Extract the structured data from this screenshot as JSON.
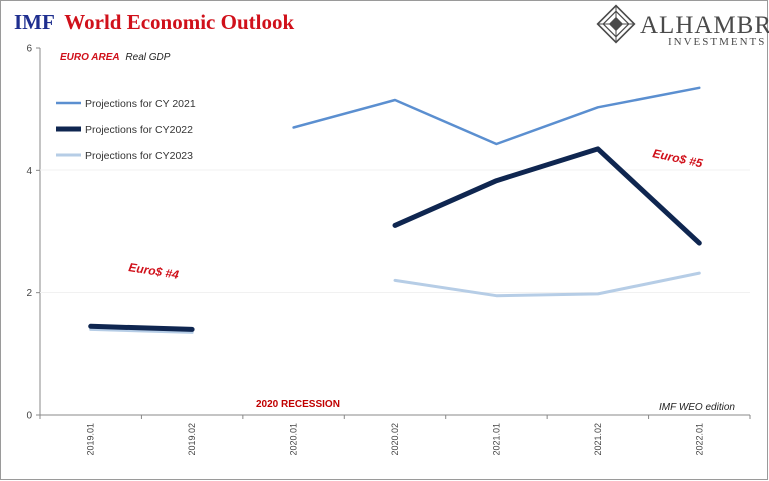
{
  "header": {
    "title_part1": "IMF",
    "title_part2": "World Economic Outlook"
  },
  "logo": {
    "name": "ALHAMBRA",
    "sub": "INVESTMENTS",
    "icon": "alhambra-diamond-icon"
  },
  "subtitle": {
    "region": "EURO AREA",
    "measure": "Real GDP"
  },
  "annotations": {
    "euro4": "Euro$ #4",
    "euro5": "Euro$ #5",
    "recession": "2020 RECESSION",
    "edition": "IMF WEO edition"
  },
  "chart_data": {
    "type": "line",
    "categories": [
      "2019.01",
      "2019.02",
      "2020.01",
      "2020.02",
      "2021.01",
      "2021.02",
      "2022.01"
    ],
    "ylim": [
      0,
      6
    ],
    "yticks": [
      "0",
      "2",
      "4",
      "6"
    ],
    "grid": false,
    "legend_position": "top-left",
    "series": [
      {
        "name": "Projections for CY 2021",
        "color": "#5b8fd0",
        "values": [
          null,
          null,
          4.7,
          5.15,
          4.43,
          5.03,
          5.35
        ]
      },
      {
        "name": "Projections for CY2022",
        "color": "#0f2650",
        "values": [
          1.45,
          1.4,
          null,
          3.1,
          3.83,
          4.35,
          2.81
        ]
      },
      {
        "name": "Projections for CY2023",
        "color": "#b6cde6",
        "values": [
          1.4,
          1.35,
          null,
          2.2,
          1.95,
          1.98,
          2.32
        ]
      }
    ]
  }
}
